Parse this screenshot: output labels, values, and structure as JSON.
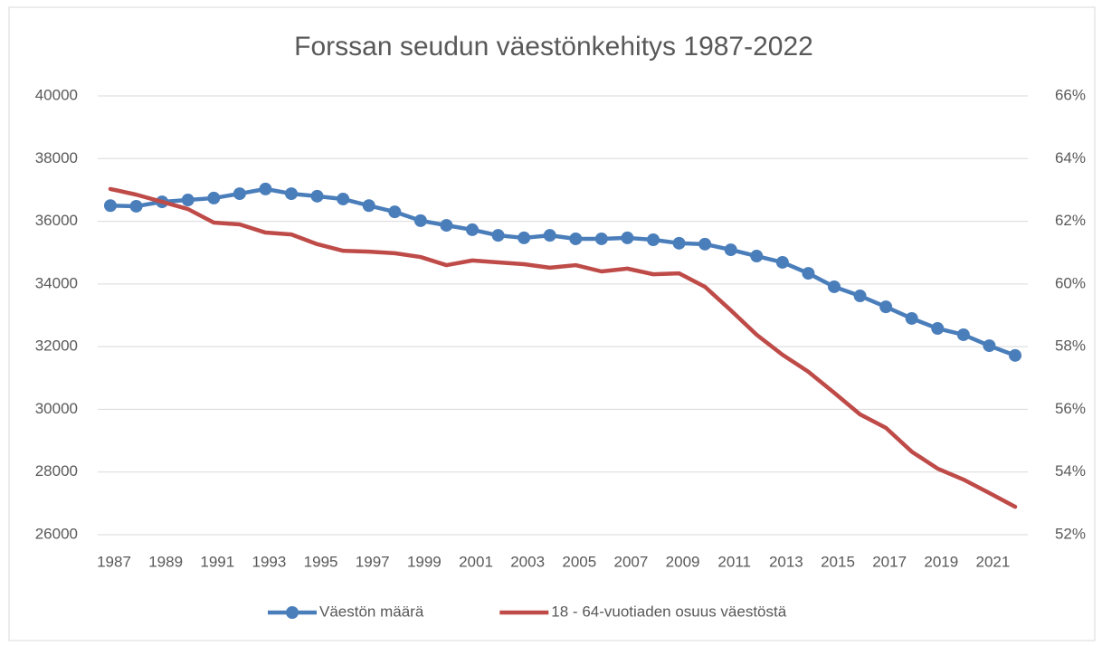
{
  "chart_data": {
    "type": "line",
    "title": "Forssan seudun väestönkehitys 1987-2022",
    "x": [
      1987,
      1988,
      1989,
      1990,
      1991,
      1992,
      1993,
      1994,
      1995,
      1996,
      1997,
      1998,
      1999,
      2000,
      2001,
      2002,
      2003,
      2004,
      2005,
      2006,
      2007,
      2008,
      2009,
      2010,
      2011,
      2012,
      2013,
      2014,
      2015,
      2016,
      2017,
      2018,
      2019,
      2020,
      2021,
      2022
    ],
    "xlim": [
      1987,
      2022
    ],
    "xticks": [
      1987,
      1989,
      1991,
      1993,
      1995,
      1997,
      1999,
      2001,
      2003,
      2005,
      2007,
      2009,
      2011,
      2013,
      2015,
      2017,
      2019,
      2021
    ],
    "ylim": [
      26000,
      40000
    ],
    "yticks": [
      26000,
      28000,
      30000,
      32000,
      34000,
      36000,
      38000,
      40000
    ],
    "y2lim": [
      52,
      66
    ],
    "y2ticks": [
      {
        "value": 52,
        "label": "52%"
      },
      {
        "value": 54,
        "label": "54%"
      },
      {
        "value": 56,
        "label": "56%"
      },
      {
        "value": 58,
        "label": "58%"
      },
      {
        "value": 60,
        "label": "60%"
      },
      {
        "value": 62,
        "label": "62%"
      },
      {
        "value": 64,
        "label": "64%"
      },
      {
        "value": 66,
        "label": "66%"
      }
    ],
    "grid": true,
    "legend": "bottom",
    "series": [
      {
        "name": "Väestön määrä",
        "color": "#4a7ebb",
        "markers": true,
        "values": [
          36500,
          36480,
          36620,
          36680,
          36740,
          36880,
          37030,
          36880,
          36800,
          36710,
          36500,
          36300,
          36020,
          35870,
          35730,
          35550,
          35470,
          35550,
          35440,
          35440,
          35470,
          35410,
          35300,
          35270,
          35090,
          34890,
          34690,
          34340,
          33910,
          33620,
          33270,
          32900,
          32580,
          32380,
          32030,
          31720
        ]
      },
      {
        "name": "18 - 64-vuotiaden osuus väestöstä",
        "color": "#be4b48",
        "markers": false,
        "axis": "y2",
        "values": [
          63.03,
          62.85,
          62.62,
          62.39,
          61.96,
          61.9,
          61.64,
          61.58,
          61.27,
          61.06,
          61.03,
          60.98,
          60.86,
          60.6,
          60.75,
          60.69,
          60.63,
          60.52,
          60.6,
          60.4,
          60.49,
          60.31,
          60.34,
          59.91,
          59.16,
          58.38,
          57.74,
          57.2,
          56.53,
          55.84,
          55.41,
          54.65,
          54.11,
          53.76,
          53.33,
          52.89
        ]
      }
    ]
  }
}
